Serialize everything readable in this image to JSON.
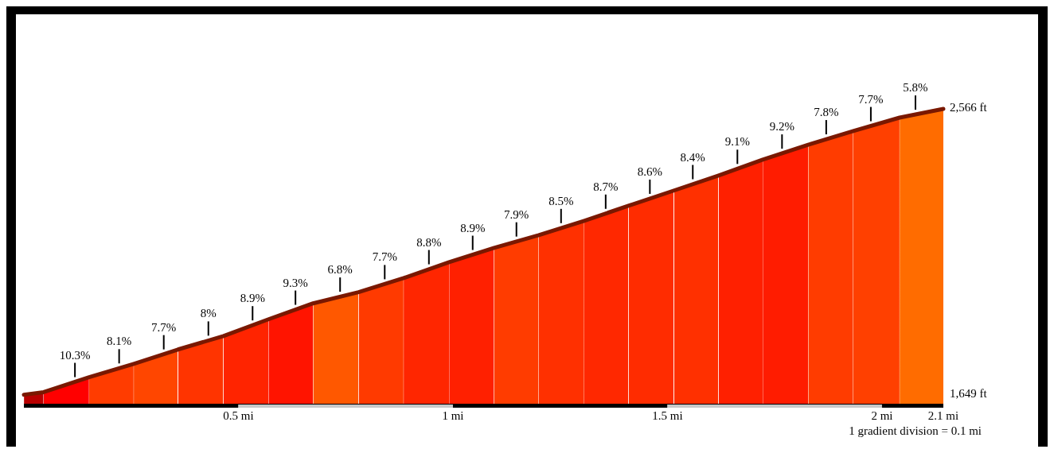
{
  "chart_data": {
    "type": "area",
    "x": [
      0,
      0.046,
      0.152,
      0.256,
      0.359,
      0.465,
      0.57,
      0.674,
      0.78,
      0.885,
      0.991,
      1.096,
      1.2,
      1.306,
      1.409,
      1.515,
      1.619,
      1.722,
      1.828,
      1.933,
      2.041,
      2.143
    ],
    "series": [
      {
        "color": "#7a1800",
        "values": [
          1649,
          1657,
          1705,
          1748,
          1794,
          1837,
          1891,
          1942,
          1978,
          2023,
          2074,
          2120,
          2161,
          2207,
          2255,
          2304,
          2352,
          2403,
          2451,
          2495,
          2538,
          2566
        ],
        "colors": [
          "#b80000",
          "#ff0000",
          "#ff3c00",
          "#ff4600",
          "#ff3400",
          "#ff2400",
          "#ff1400",
          "#ff5800",
          "#ff3a00",
          "#ff2600",
          "#ff2000",
          "#ff3c00",
          "#ff3000",
          "#ff2800",
          "#ff2c00",
          "#ff3000",
          "#ff2000",
          "#ff1c00",
          "#ff3c00",
          "#ff4000",
          "#ff6c00",
          "#ff6c00"
        ]
      }
    ],
    "xlim": [
      0,
      2.143
    ],
    "xticks": [
      {
        "value": 0.5,
        "label": "0.5 mi"
      },
      {
        "value": 1,
        "label": "1 mi"
      },
      {
        "value": 1.5,
        "label": "1.5 mi"
      },
      {
        "value": 2,
        "label": "2 mi"
      },
      {
        "value": 2.143,
        "label": "2.1 mi"
      }
    ],
    "ylim": [
      1620,
      2566
    ],
    "yticks": [
      {
        "value": 1649,
        "label": "1,649 ft"
      },
      {
        "value": 2566,
        "label": "2,566 ft"
      }
    ],
    "annotations": [
      {
        "text": "10.3%",
        "x": 0.119,
        "y": 1690
      },
      {
        "text": "8.1%",
        "x": 0.222,
        "y": 1734
      },
      {
        "text": "7.7%",
        "x": 0.326,
        "y": 1779
      },
      {
        "text": "8%",
        "x": 0.43,
        "y": 1823
      },
      {
        "text": "8.9%",
        "x": 0.533,
        "y": 1872
      },
      {
        "text": "9.3%",
        "x": 0.633,
        "y": 1922
      },
      {
        "text": "6.8%",
        "x": 0.737,
        "y": 1964
      },
      {
        "text": "7.7%",
        "x": 0.841,
        "y": 2004
      },
      {
        "text": "8.8%",
        "x": 0.944,
        "y": 2052
      },
      {
        "text": "8.9%",
        "x": 1.046,
        "y": 2098
      },
      {
        "text": "7.9%",
        "x": 1.148,
        "y": 2141
      },
      {
        "text": "8.5%",
        "x": 1.252,
        "y": 2184
      },
      {
        "text": "8.7%",
        "x": 1.356,
        "y": 2230
      },
      {
        "text": "8.6%",
        "x": 1.459,
        "y": 2278
      },
      {
        "text": "8.4%",
        "x": 1.559,
        "y": 2325
      },
      {
        "text": "9.1%",
        "x": 1.663,
        "y": 2374
      },
      {
        "text": "9.2%",
        "x": 1.767,
        "y": 2423
      },
      {
        "text": "7.8%",
        "x": 1.87,
        "y": 2469
      },
      {
        "text": "7.7%",
        "x": 1.974,
        "y": 2511
      },
      {
        "text": "5.8%",
        "x": 2.078,
        "y": 2548
      },
      "1 gradient division = 0.1 mi"
    ],
    "grid": false
  }
}
